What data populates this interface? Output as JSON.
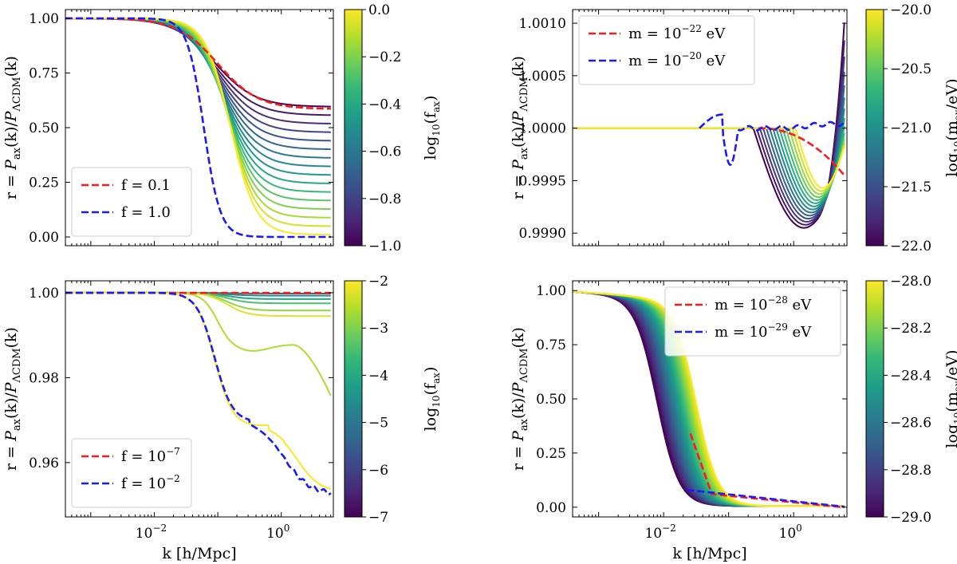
{
  "figure": {
    "ylabel_prefix": "r = ",
    "ylabel_p": "P",
    "ylabel_ax": "ax",
    "ylabel_k": "(k)/",
    "ylabel_lcdm": "ΛCDM",
    "ylabel_end": "(k)",
    "xlabel": "k [h/Mpc]",
    "colormap": [
      "#440154",
      "#482878",
      "#3e4989",
      "#31688e",
      "#26828e",
      "#1f9e89",
      "#35b779",
      "#6ece58",
      "#b5de2b",
      "#fde725"
    ]
  },
  "chart_data": [
    {
      "id": "top-left",
      "type": "line",
      "ylim": [
        -0.04,
        1.04
      ],
      "yticks": [
        "1.00",
        "0.75",
        "0.50",
        "0.25",
        "0.00"
      ],
      "ytick_values": [
        1.0,
        0.75,
        0.5,
        0.25,
        0.0
      ],
      "show_xticks": false,
      "curve_kind": "fax",
      "n_curves": 16,
      "plateau_max": 0.595,
      "plateau_min": 0.0,
      "red_dashed": {
        "label_main": "f = 0.1",
        "label_sup": ""
      },
      "blue_dashed": {
        "label_main": "f = 1.0",
        "label_sup": ""
      },
      "legend_position": "bottom-left",
      "colorbar": {
        "label_main": "log",
        "label_sub": "10",
        "label_arg": "(f",
        "label_argsub": "ax",
        "label_close": ")",
        "ticks": [
          "0.0",
          "−0.2",
          "−0.4",
          "−0.6",
          "−0.8",
          "−1.0"
        ],
        "tick_values": [
          0.0,
          -0.2,
          -0.4,
          -0.6,
          -0.8,
          -1.0
        ],
        "range": [
          -1.0,
          0.0
        ]
      }
    },
    {
      "id": "top-right",
      "type": "line",
      "ylim": [
        0.99888,
        1.00113
      ],
      "yticks": [
        "1.0010",
        "1.0005",
        "1.0000",
        "0.9995",
        "0.9990"
      ],
      "ytick_values": [
        1.001,
        1.0005,
        1.0,
        0.9995,
        0.999
      ],
      "show_xticks": false,
      "curve_kind": "mass-small",
      "n_curves": 14,
      "red_dashed": {
        "label_main": "m = 10",
        "label_sup": "−22",
        "label_unit": " eV"
      },
      "blue_dashed": {
        "label_main": "m = 10",
        "label_sup": "−20",
        "label_unit": " eV"
      },
      "legend_position": "top-left",
      "colorbar": {
        "label_main": "log",
        "label_sub": "10",
        "label_arg": "(m",
        "label_argsub": "ax",
        "label_close": "/eV)",
        "ticks": [
          "−20.0",
          "−20.5",
          "−21.0",
          "−21.5",
          "−22.0"
        ],
        "tick_values": [
          -20.0,
          -20.5,
          -21.0,
          -21.5,
          -22.0
        ],
        "range": [
          -22.0,
          -20.0
        ]
      }
    },
    {
      "id": "bottom-left",
      "type": "line",
      "ylim": [
        0.9472,
        1.0028
      ],
      "yticks": [
        "1.00",
        "0.98",
        "0.96"
      ],
      "ytick_values": [
        1.0,
        0.98,
        0.96
      ],
      "show_xticks": true,
      "curve_kind": "fax-small",
      "n_curves": 6,
      "red_dashed": {
        "label_main": "f = 10",
        "label_sup": "−7"
      },
      "blue_dashed": {
        "label_main": "f = 10",
        "label_sup": "−2"
      },
      "legend_position": "bottom-left",
      "colorbar": {
        "label_main": "log",
        "label_sub": "10",
        "label_arg": "(f",
        "label_argsub": "ax",
        "label_close": ")",
        "ticks": [
          "−2",
          "−3",
          "−4",
          "−5",
          "−6",
          "−7"
        ],
        "tick_values": [
          -2,
          -3,
          -4,
          -5,
          -6,
          -7
        ],
        "range": [
          -7,
          -2
        ]
      }
    },
    {
      "id": "bottom-right",
      "type": "line",
      "ylim": [
        -0.045,
        1.045
      ],
      "yticks": [
        "1.00",
        "0.75",
        "0.50",
        "0.25",
        "0.00"
      ],
      "ytick_values": [
        1.0,
        0.75,
        0.5,
        0.25,
        0.0
      ],
      "show_xticks": true,
      "curve_kind": "mass-large",
      "n_curves": 30,
      "red_dashed": {
        "label_main": "m = 10",
        "label_sup": "−28",
        "label_unit": " eV"
      },
      "blue_dashed": {
        "label_main": "m = 10",
        "label_sup": "−29",
        "label_unit": " eV"
      },
      "legend_position": "top-right",
      "colorbar": {
        "label_main": "log",
        "label_sub": "10",
        "label_arg": "(m",
        "label_argsub": "ax",
        "label_close": "/eV)",
        "ticks": [
          "−28.0",
          "−28.2",
          "−28.4",
          "−28.6",
          "−28.8",
          "−29.0"
        ],
        "tick_values": [
          -28.0,
          -28.2,
          -28.4,
          -28.6,
          -28.8,
          -29.0
        ],
        "range": [
          -29.0,
          -28.0
        ]
      }
    }
  ],
  "xaxis": {
    "log_range": [
      -3.4,
      0.82
    ],
    "tick_base": "10",
    "ticks": [
      {
        "sup": "−2",
        "log": -2
      },
      {
        "sup": "0",
        "log": 0
      }
    ]
  }
}
